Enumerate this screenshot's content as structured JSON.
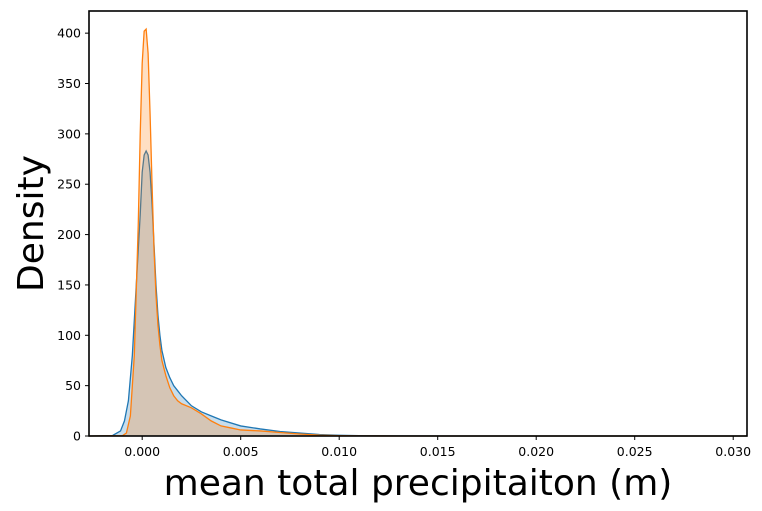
{
  "chart_data": {
    "type": "area",
    "title": "",
    "xlabel": "mean total precipitaiton (m)",
    "ylabel": "Density",
    "xlim": [
      -0.0027,
      0.0307
    ],
    "ylim": [
      0,
      422
    ],
    "xticks": [
      0.0,
      0.005,
      0.01,
      0.015,
      0.02,
      0.025,
      0.03
    ],
    "xtick_labels": [
      "0.000",
      "0.005",
      "0.010",
      "0.015",
      "0.020",
      "0.025",
      "0.030"
    ],
    "yticks": [
      0,
      50,
      100,
      150,
      200,
      250,
      300,
      350,
      400
    ],
    "ytick_labels": [
      "0",
      "50",
      "100",
      "150",
      "200",
      "250",
      "300",
      "350",
      "400"
    ],
    "grid": false,
    "series": [
      {
        "color": "#1f77b4",
        "fill": "#1f77b4",
        "points": [
          [
            -0.0027,
            0
          ],
          [
            -0.0015,
            0.5
          ],
          [
            -0.0011,
            5
          ],
          [
            -0.0009,
            15
          ],
          [
            -0.0007,
            35
          ],
          [
            -0.0005,
            80
          ],
          [
            -0.0003,
            150
          ],
          [
            -0.0001,
            220
          ],
          [
            0.0,
            262
          ],
          [
            0.0001,
            279
          ],
          [
            0.0002,
            283
          ],
          [
            0.0003,
            279
          ],
          [
            0.0004,
            262
          ],
          [
            0.0005,
            230
          ],
          [
            0.0006,
            190
          ],
          [
            0.0007,
            150
          ],
          [
            0.0008,
            120
          ],
          [
            0.0009,
            100
          ],
          [
            0.001,
            85
          ],
          [
            0.0012,
            68
          ],
          [
            0.0014,
            58
          ],
          [
            0.0016,
            50
          ],
          [
            0.0018,
            45
          ],
          [
            0.002,
            40
          ],
          [
            0.0025,
            30
          ],
          [
            0.003,
            24
          ],
          [
            0.0035,
            20
          ],
          [
            0.004,
            16
          ],
          [
            0.005,
            10
          ],
          [
            0.006,
            7
          ],
          [
            0.007,
            4.5
          ],
          [
            0.008,
            3
          ],
          [
            0.009,
            1.5
          ],
          [
            0.01,
            0.7
          ],
          [
            0.011,
            0.3
          ],
          [
            0.013,
            0.1
          ],
          [
            0.016,
            0.02
          ],
          [
            0.0307,
            0
          ]
        ]
      },
      {
        "color": "#ff7f0e",
        "fill": "#ff7f0e",
        "points": [
          [
            -0.0027,
            0
          ],
          [
            -0.001,
            0.3
          ],
          [
            -0.0008,
            3
          ],
          [
            -0.0006,
            20
          ],
          [
            -0.0004,
            80
          ],
          [
            -0.0002,
            210
          ],
          [
            -0.0001,
            300
          ],
          [
            0.0,
            370
          ],
          [
            0.0001,
            402
          ],
          [
            0.0002,
            404
          ],
          [
            0.0003,
            380
          ],
          [
            0.0004,
            320
          ],
          [
            0.0005,
            250
          ],
          [
            0.0006,
            185
          ],
          [
            0.0007,
            140
          ],
          [
            0.0008,
            110
          ],
          [
            0.0009,
            90
          ],
          [
            0.001,
            75
          ],
          [
            0.0012,
            60
          ],
          [
            0.0014,
            48
          ],
          [
            0.0016,
            40
          ],
          [
            0.0018,
            35
          ],
          [
            0.002,
            32
          ],
          [
            0.0025,
            28
          ],
          [
            0.003,
            22
          ],
          [
            0.0035,
            15
          ],
          [
            0.004,
            10
          ],
          [
            0.0045,
            8
          ],
          [
            0.005,
            6
          ],
          [
            0.006,
            5
          ],
          [
            0.007,
            3.5
          ],
          [
            0.008,
            2
          ],
          [
            0.009,
            0.8
          ],
          [
            0.01,
            0.3
          ],
          [
            0.011,
            0.1
          ],
          [
            0.013,
            0.02
          ],
          [
            0.0307,
            0
          ]
        ]
      }
    ]
  }
}
